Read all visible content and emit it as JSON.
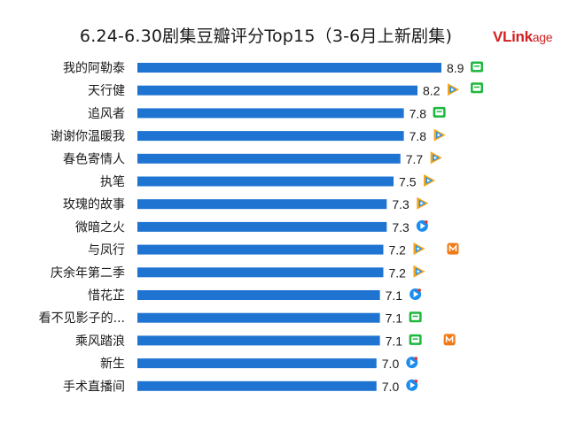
{
  "header": {
    "title": "6.24-6.30剧集豆瓣评分Top15（3-6月上新剧集)",
    "logo_main": "VLink",
    "logo_rest": "age"
  },
  "colors": {
    "bar": "#1f74d2",
    "logo": "#d32020",
    "platform_iqiyi": "#1fb83f",
    "platform_tencent": "#f2a51c",
    "platform_youku": "#1a8ef0",
    "platform_mango": "#f07a18"
  },
  "chart_data": {
    "type": "bar",
    "orientation": "horizontal",
    "title": "6.24-6.30剧集豆瓣评分Top15（3-6月上新剧集)",
    "xlim": [
      0,
      9
    ],
    "grid": false,
    "categories": [
      "我的阿勒泰",
      "天行健",
      "追风者",
      "谢谢你温暖我",
      "春色寄情人",
      "执笔",
      "玫瑰的故事",
      "微暗之火",
      "与凤行",
      "庆余年第二季",
      "惜花芷",
      "看不见影子的...",
      "乘风踏浪",
      "新生",
      "手术直播间"
    ],
    "values": [
      8.9,
      8.2,
      7.8,
      7.8,
      7.7,
      7.5,
      7.3,
      7.3,
      7.2,
      7.2,
      7.1,
      7.1,
      7.1,
      7.0,
      7.0
    ],
    "value_labels": [
      "8.9",
      "8.2",
      "7.8",
      "7.8",
      "7.7",
      "7.5",
      "7.3",
      "7.3",
      "7.2",
      "7.2",
      "7.1",
      "7.1",
      "7.1",
      "7.0",
      "7.0"
    ],
    "platforms": [
      [
        "iqiyi-icon"
      ],
      [
        "tencent-icon",
        "iqiyi-icon"
      ],
      [
        "iqiyi-icon"
      ],
      [
        "tencent-icon"
      ],
      [
        "tencent-icon"
      ],
      [
        "tencent-icon"
      ],
      [
        "tencent-icon"
      ],
      [
        "youku-icon"
      ],
      [
        "tencent-icon",
        "mango-icon"
      ],
      [
        "tencent-icon"
      ],
      [
        "youku-icon"
      ],
      [
        "iqiyi-icon"
      ],
      [
        "iqiyi-icon",
        "mango-icon"
      ],
      [
        "youku-icon"
      ],
      [
        "youku-icon"
      ]
    ]
  }
}
